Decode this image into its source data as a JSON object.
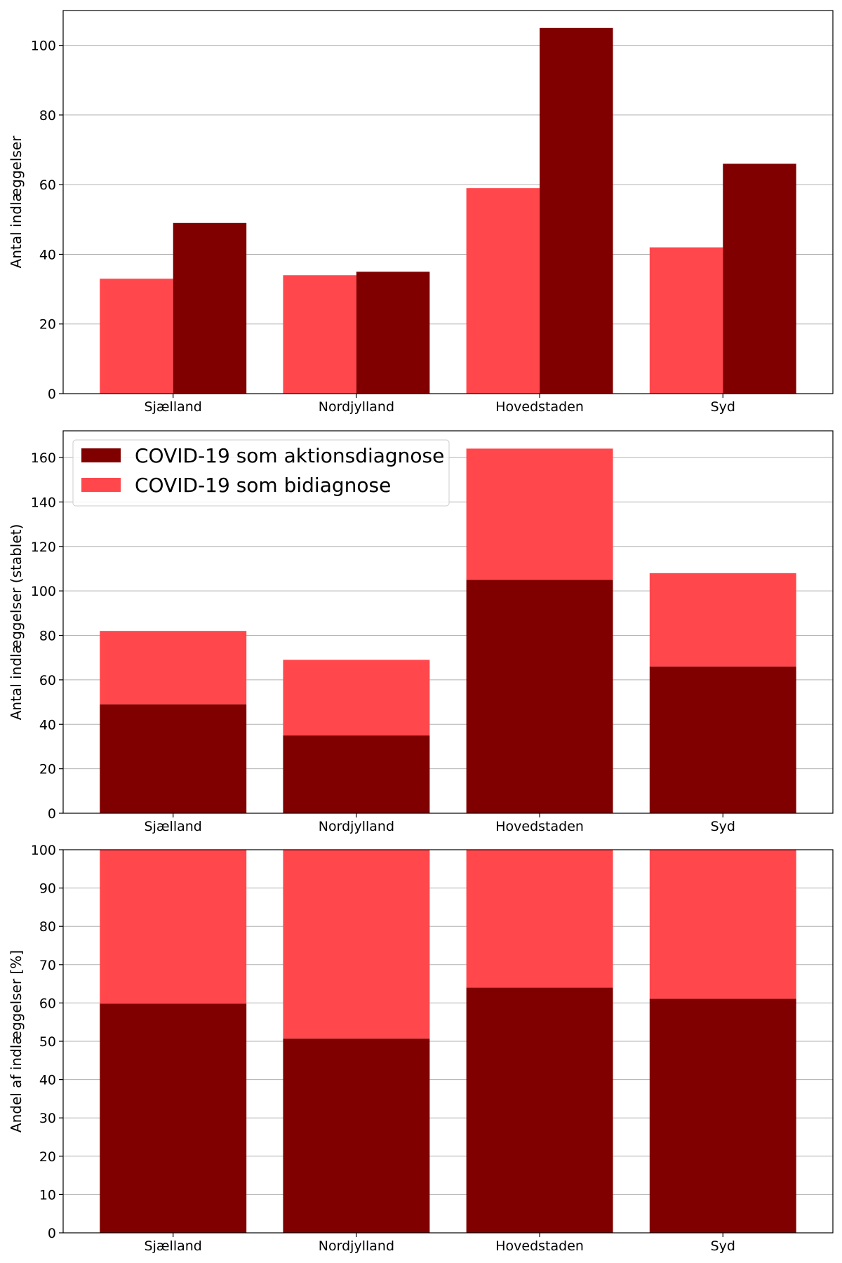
{
  "chart_data": [
    {
      "type": "bar",
      "mode": "grouped",
      "categories": [
        "Sjælland",
        "Nordjylland",
        "Hovedstaden",
        "Syd"
      ],
      "ylabel": "Antal indlæggelser",
      "ylim": [
        0,
        110
      ],
      "yticks": [
        0,
        20,
        40,
        60,
        80,
        100
      ],
      "grid": "y",
      "series": [
        {
          "color": "#ff474c",
          "values": [
            33,
            34,
            59,
            42
          ]
        },
        {
          "color": "#800000",
          "values": [
            49,
            35,
            105,
            66
          ]
        }
      ]
    },
    {
      "type": "bar",
      "mode": "stacked",
      "categories": [
        "Sjælland",
        "Nordjylland",
        "Hovedstaden",
        "Syd"
      ],
      "ylabel": "Antal indlæggelser (stablet)",
      "ylim": [
        0,
        172
      ],
      "yticks": [
        0,
        20,
        40,
        60,
        80,
        100,
        120,
        140,
        160
      ],
      "grid": "y",
      "legend": "top-left",
      "series": [
        {
          "name": "COVID-19 som aktionsdiagnose",
          "color": "#800000",
          "values": [
            49,
            35,
            105,
            66
          ]
        },
        {
          "name": "COVID-19 som bidiagnose",
          "color": "#ff474c",
          "values": [
            33,
            34,
            59,
            42
          ]
        }
      ]
    },
    {
      "type": "bar",
      "mode": "stacked",
      "categories": [
        "Sjælland",
        "Nordjylland",
        "Hovedstaden",
        "Syd"
      ],
      "ylabel": "Andel af indlæggelser [%]",
      "ylim": [
        0,
        100
      ],
      "yticks": [
        0,
        10,
        20,
        30,
        40,
        50,
        60,
        70,
        80,
        90,
        100
      ],
      "grid": "y",
      "series": [
        {
          "color": "#800000",
          "values": [
            59.8,
            50.7,
            64.0,
            61.1
          ]
        },
        {
          "color": "#ff474c",
          "values": [
            40.2,
            49.3,
            36.0,
            38.9
          ]
        }
      ]
    }
  ]
}
